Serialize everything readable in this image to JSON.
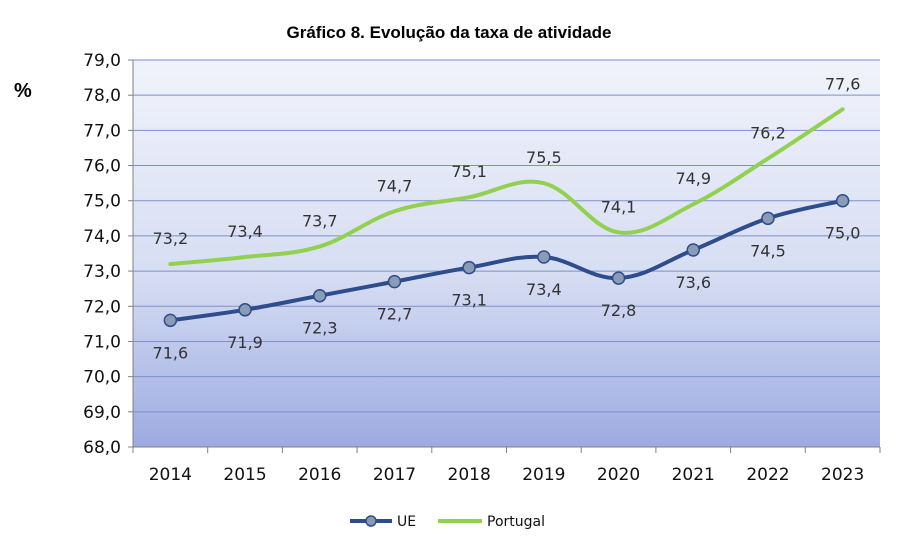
{
  "chart_data": {
    "type": "line",
    "title": "Gráfico 8. Evolução da taxa de atividade",
    "ylabel": "%",
    "xlabel": "",
    "categories": [
      "2014",
      "2015",
      "2016",
      "2017",
      "2018",
      "2019",
      "2020",
      "2021",
      "2022",
      "2023"
    ],
    "ylim": [
      68.0,
      79.0
    ],
    "ytick_step": 1.0,
    "ytick_labels": [
      "68,0",
      "69,0",
      "70,0",
      "71,0",
      "72,0",
      "73,0",
      "74,0",
      "75,0",
      "76,0",
      "77,0",
      "78,0",
      "79,0"
    ],
    "grid": true,
    "legend": "bottom",
    "series": [
      {
        "name": "UE",
        "values": [
          71.6,
          71.9,
          72.3,
          72.7,
          73.1,
          73.4,
          72.8,
          73.6,
          74.5,
          75.0
        ],
        "labels": [
          "71,6",
          "71,9",
          "72,3",
          "72,7",
          "73,1",
          "73,4",
          "72,8",
          "73,6",
          "74,5",
          "75,0"
        ],
        "color": "#2E4D8C",
        "marker_color": "#8A9BB5",
        "markers": true
      },
      {
        "name": "Portugal",
        "values": [
          73.2,
          73.4,
          73.7,
          74.7,
          75.1,
          75.5,
          74.1,
          74.9,
          76.2,
          77.6
        ],
        "labels": [
          "73,2",
          "73,4",
          "73,7",
          "74,7",
          "75,1",
          "75,5",
          "74,1",
          "74,9",
          "76,2",
          "77,6"
        ],
        "color": "#92D050",
        "markers": false
      }
    ]
  }
}
